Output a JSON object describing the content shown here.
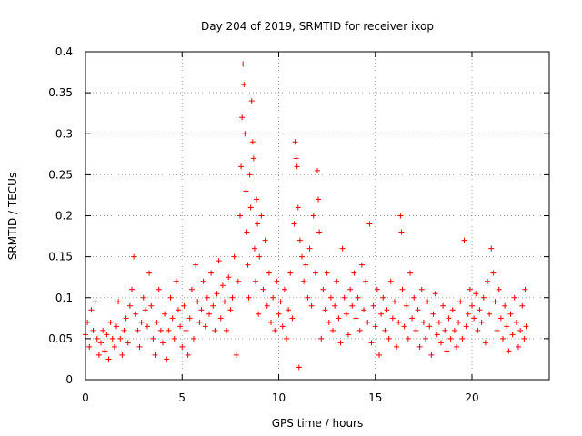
{
  "chart_data": {
    "type": "scatter",
    "title": "Day 204 of 2019, SRMTID for receiver ixop",
    "xlabel": "GPS time / hours",
    "ylabel": "SRMTID / TECUs",
    "xlim": [
      0,
      24
    ],
    "ylim": [
      0,
      0.4
    ],
    "x_ticks": [
      0,
      5,
      10,
      15,
      20
    ],
    "x_tick_labels": [
      "0",
      "5",
      "10",
      "15",
      "20"
    ],
    "y_ticks": [
      0,
      0.05,
      0.1,
      0.15,
      0.2,
      0.25,
      0.3,
      0.35,
      0.4
    ],
    "y_tick_labels": [
      "0",
      "0.05",
      "0.1",
      "0.15",
      "0.2",
      "0.25",
      "0.3",
      "0.35",
      "0.4"
    ],
    "grid": true,
    "marker": "plus",
    "marker_color": "#ff0000",
    "series": [
      {
        "name": "SRMTID",
        "points": [
          [
            0.0,
            0.055
          ],
          [
            0.1,
            0.07
          ],
          [
            0.2,
            0.04
          ],
          [
            0.3,
            0.085
          ],
          [
            0.4,
            0.06
          ],
          [
            0.5,
            0.095
          ],
          [
            0.6,
            0.05
          ],
          [
            0.7,
            0.03
          ],
          [
            0.8,
            0.045
          ],
          [
            0.9,
            0.06
          ],
          [
            1.0,
            0.035
          ],
          [
            1.1,
            0.055
          ],
          [
            1.2,
            0.025
          ],
          [
            1.3,
            0.07
          ],
          [
            1.4,
            0.05
          ],
          [
            1.5,
            0.04
          ],
          [
            1.6,
            0.065
          ],
          [
            1.7,
            0.095
          ],
          [
            1.8,
            0.05
          ],
          [
            1.9,
            0.03
          ],
          [
            2.0,
            0.06
          ],
          [
            2.1,
            0.075
          ],
          [
            2.2,
            0.045
          ],
          [
            2.3,
            0.09
          ],
          [
            2.4,
            0.11
          ],
          [
            2.5,
            0.15
          ],
          [
            2.6,
            0.08
          ],
          [
            2.7,
            0.06
          ],
          [
            2.8,
            0.04
          ],
          [
            2.9,
            0.07
          ],
          [
            3.0,
            0.1
          ],
          [
            3.1,
            0.085
          ],
          [
            3.2,
            0.065
          ],
          [
            3.3,
            0.13
          ],
          [
            3.4,
            0.09
          ],
          [
            3.5,
            0.05
          ],
          [
            3.6,
            0.03
          ],
          [
            3.7,
            0.07
          ],
          [
            3.8,
            0.11
          ],
          [
            3.9,
            0.06
          ],
          [
            4.0,
            0.045
          ],
          [
            4.1,
            0.08
          ],
          [
            4.2,
            0.025
          ],
          [
            4.3,
            0.06
          ],
          [
            4.4,
            0.1
          ],
          [
            4.5,
            0.075
          ],
          [
            4.6,
            0.05
          ],
          [
            4.7,
            0.12
          ],
          [
            4.8,
            0.085
          ],
          [
            4.9,
            0.065
          ],
          [
            5.0,
            0.04
          ],
          [
            5.1,
            0.09
          ],
          [
            5.2,
            0.06
          ],
          [
            5.3,
            0.03
          ],
          [
            5.4,
            0.075
          ],
          [
            5.5,
            0.11
          ],
          [
            5.6,
            0.05
          ],
          [
            5.7,
            0.14
          ],
          [
            5.8,
            0.095
          ],
          [
            5.9,
            0.07
          ],
          [
            6.0,
            0.085
          ],
          [
            6.1,
            0.12
          ],
          [
            6.2,
            0.065
          ],
          [
            6.3,
            0.1
          ],
          [
            6.4,
            0.08
          ],
          [
            6.5,
            0.13
          ],
          [
            6.6,
            0.09
          ],
          [
            6.7,
            0.06
          ],
          [
            6.8,
            0.105
          ],
          [
            6.9,
            0.145
          ],
          [
            7.0,
            0.075
          ],
          [
            7.1,
            0.115
          ],
          [
            7.2,
            0.095
          ],
          [
            7.3,
            0.06
          ],
          [
            7.4,
            0.125
          ],
          [
            7.5,
            0.085
          ],
          [
            7.6,
            0.1
          ],
          [
            7.7,
            0.15
          ],
          [
            7.8,
            0.03
          ],
          [
            7.9,
            0.12
          ],
          [
            8.0,
            0.2
          ],
          [
            8.05,
            0.26
          ],
          [
            8.1,
            0.32
          ],
          [
            8.15,
            0.385
          ],
          [
            8.2,
            0.36
          ],
          [
            8.25,
            0.3
          ],
          [
            8.3,
            0.23
          ],
          [
            8.35,
            0.18
          ],
          [
            8.4,
            0.14
          ],
          [
            8.45,
            0.1
          ],
          [
            8.5,
            0.25
          ],
          [
            8.55,
            0.21
          ],
          [
            8.6,
            0.34
          ],
          [
            8.65,
            0.29
          ],
          [
            8.7,
            0.27
          ],
          [
            8.75,
            0.16
          ],
          [
            8.8,
            0.12
          ],
          [
            8.85,
            0.22
          ],
          [
            8.9,
            0.19
          ],
          [
            8.95,
            0.08
          ],
          [
            9.0,
            0.15
          ],
          [
            9.1,
            0.2
          ],
          [
            9.2,
            0.11
          ],
          [
            9.3,
            0.17
          ],
          [
            9.4,
            0.09
          ],
          [
            9.5,
            0.13
          ],
          [
            9.6,
            0.07
          ],
          [
            9.7,
            0.1
          ],
          [
            9.8,
            0.06
          ],
          [
            9.9,
            0.12
          ],
          [
            10.0,
            0.08
          ],
          [
            10.1,
            0.095
          ],
          [
            10.2,
            0.065
          ],
          [
            10.3,
            0.11
          ],
          [
            10.4,
            0.05
          ],
          [
            10.5,
            0.085
          ],
          [
            10.6,
            0.13
          ],
          [
            10.7,
            0.075
          ],
          [
            10.8,
            0.19
          ],
          [
            10.85,
            0.29
          ],
          [
            10.9,
            0.27
          ],
          [
            10.95,
            0.26
          ],
          [
            11.0,
            0.21
          ],
          [
            11.05,
            0.015
          ],
          [
            11.1,
            0.17
          ],
          [
            11.2,
            0.15
          ],
          [
            11.3,
            0.12
          ],
          [
            11.4,
            0.14
          ],
          [
            11.5,
            0.1
          ],
          [
            11.6,
            0.16
          ],
          [
            11.7,
            0.09
          ],
          [
            11.8,
            0.2
          ],
          [
            11.9,
            0.13
          ],
          [
            12.0,
            0.255
          ],
          [
            12.05,
            0.22
          ],
          [
            12.1,
            0.18
          ],
          [
            12.2,
            0.05
          ],
          [
            12.3,
            0.11
          ],
          [
            12.4,
            0.085
          ],
          [
            12.5,
            0.13
          ],
          [
            12.6,
            0.07
          ],
          [
            12.7,
            0.1
          ],
          [
            12.8,
            0.06
          ],
          [
            12.9,
            0.09
          ],
          [
            13.0,
            0.12
          ],
          [
            13.1,
            0.075
          ],
          [
            13.2,
            0.045
          ],
          [
            13.3,
            0.16
          ],
          [
            13.4,
            0.1
          ],
          [
            13.5,
            0.08
          ],
          [
            13.6,
            0.055
          ],
          [
            13.7,
            0.11
          ],
          [
            13.8,
            0.09
          ],
          [
            13.9,
            0.13
          ],
          [
            14.0,
            0.075
          ],
          [
            14.1,
            0.1
          ],
          [
            14.2,
            0.06
          ],
          [
            14.3,
            0.14
          ],
          [
            14.4,
            0.085
          ],
          [
            14.5,
            0.12
          ],
          [
            14.6,
            0.07
          ],
          [
            14.7,
            0.19
          ],
          [
            14.8,
            0.045
          ],
          [
            14.9,
            0.09
          ],
          [
            15.0,
            0.065
          ],
          [
            15.1,
            0.11
          ],
          [
            15.2,
            0.03
          ],
          [
            15.3,
            0.08
          ],
          [
            15.4,
            0.1
          ],
          [
            15.5,
            0.06
          ],
          [
            15.6,
            0.085
          ],
          [
            15.7,
            0.05
          ],
          [
            15.8,
            0.12
          ],
          [
            15.9,
            0.075
          ],
          [
            16.0,
            0.095
          ],
          [
            16.1,
            0.04
          ],
          [
            16.2,
            0.07
          ],
          [
            16.3,
            0.2
          ],
          [
            16.35,
            0.18
          ],
          [
            16.4,
            0.11
          ],
          [
            16.5,
            0.065
          ],
          [
            16.6,
            0.09
          ],
          [
            16.7,
            0.05
          ],
          [
            16.8,
            0.13
          ],
          [
            16.9,
            0.075
          ],
          [
            17.0,
            0.1
          ],
          [
            17.1,
            0.06
          ],
          [
            17.2,
            0.085
          ],
          [
            17.3,
            0.04
          ],
          [
            17.4,
            0.11
          ],
          [
            17.5,
            0.07
          ],
          [
            17.6,
            0.05
          ],
          [
            17.7,
            0.095
          ],
          [
            17.8,
            0.065
          ],
          [
            17.9,
            0.03
          ],
          [
            18.0,
            0.08
          ],
          [
            18.1,
            0.105
          ],
          [
            18.2,
            0.055
          ],
          [
            18.3,
            0.07
          ],
          [
            18.4,
            0.045
          ],
          [
            18.5,
            0.09
          ],
          [
            18.6,
            0.06
          ],
          [
            18.7,
            0.035
          ],
          [
            18.8,
            0.075
          ],
          [
            18.9,
            0.05
          ],
          [
            19.0,
            0.085
          ],
          [
            19.1,
            0.06
          ],
          [
            19.2,
            0.04
          ],
          [
            19.3,
            0.07
          ],
          [
            19.4,
            0.095
          ],
          [
            19.5,
            0.05
          ],
          [
            19.6,
            0.17
          ],
          [
            19.7,
            0.065
          ],
          [
            19.8,
            0.08
          ],
          [
            19.9,
            0.11
          ],
          [
            20.0,
            0.09
          ],
          [
            20.1,
            0.075
          ],
          [
            20.2,
            0.105
          ],
          [
            20.3,
            0.06
          ],
          [
            20.4,
            0.085
          ],
          [
            20.5,
            0.07
          ],
          [
            20.6,
            0.1
          ],
          [
            20.7,
            0.045
          ],
          [
            20.8,
            0.12
          ],
          [
            20.9,
            0.08
          ],
          [
            21.0,
            0.16
          ],
          [
            21.1,
            0.13
          ],
          [
            21.2,
            0.095
          ],
          [
            21.3,
            0.06
          ],
          [
            21.4,
            0.11
          ],
          [
            21.5,
            0.075
          ],
          [
            21.6,
            0.05
          ],
          [
            21.7,
            0.09
          ],
          [
            21.8,
            0.065
          ],
          [
            21.9,
            0.035
          ],
          [
            22.0,
            0.08
          ],
          [
            22.1,
            0.055
          ],
          [
            22.2,
            0.1
          ],
          [
            22.3,
            0.07
          ],
          [
            22.4,
            0.04
          ],
          [
            22.5,
            0.06
          ],
          [
            22.6,
            0.09
          ],
          [
            22.7,
            0.05
          ],
          [
            22.75,
            0.11
          ],
          [
            22.8,
            0.065
          ]
        ]
      }
    ]
  }
}
